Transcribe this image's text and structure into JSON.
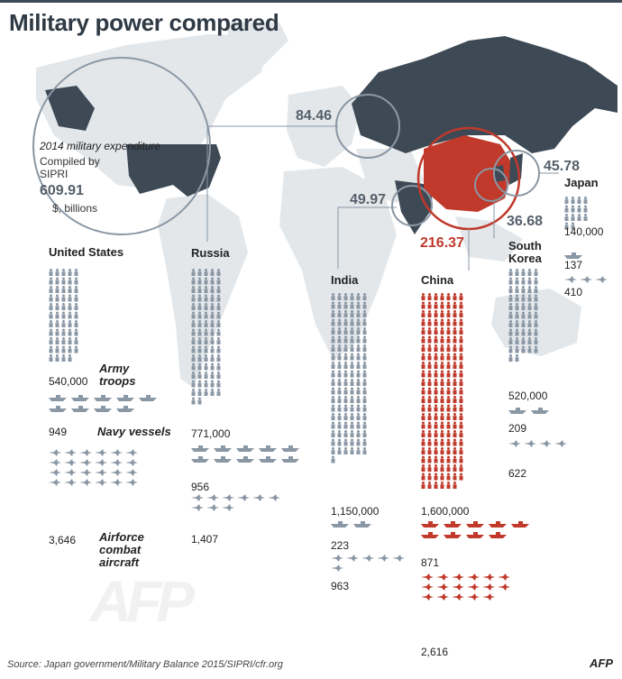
{
  "header": {
    "title": "Military power compared"
  },
  "legend": {
    "expenditure_line1": "2014 military expenditure",
    "expenditure_line2": "Compiled by",
    "expenditure_line3": "SIPRI",
    "unit": "$, billions",
    "troops": "Army troops",
    "vessels": "Navy vessels",
    "aircraft": "Airforce combat aircraft"
  },
  "footer": {
    "source": "Source: Japan government/Military Balance 2015/SIPRI/cfr.org",
    "logo": "AFP"
  },
  "colors": {
    "default": "#8a97a4",
    "highlight": "#c0392b",
    "map": "#e3e7ea",
    "dark_map": "#3d4a56",
    "spend_text": "#55606b"
  },
  "icons": {
    "troops": "soldier-icon",
    "vessels": "warship-icon",
    "aircraft": "fighter-jet-icon"
  },
  "chart_data": {
    "type": "table",
    "title": "Military power compared",
    "countries": [
      {
        "name": "United States",
        "expenditure": 609.91,
        "expenditure_label": "609.91",
        "troops": 540000,
        "troops_label": "540,000",
        "vessels": 949,
        "vessels_label": "949",
        "aircraft": 3646,
        "aircraft_label": "3,646"
      },
      {
        "name": "Russia",
        "expenditure": 84.46,
        "expenditure_label": "84.46",
        "troops": 771000,
        "troops_label": "771,000",
        "vessels": 956,
        "vessels_label": "956",
        "aircraft": 1407,
        "aircraft_label": "1,407"
      },
      {
        "name": "India",
        "expenditure": 49.97,
        "expenditure_label": "49.97",
        "troops": 1150000,
        "troops_label": "1,150,000",
        "vessels": 223,
        "vessels_label": "223",
        "aircraft": 963,
        "aircraft_label": "963"
      },
      {
        "name": "China",
        "expenditure": 216.37,
        "expenditure_label": "216.37",
        "troops": 1600000,
        "troops_label": "1,600,000",
        "vessels": 871,
        "vessels_label": "871",
        "aircraft": 2616,
        "aircraft_label": "2,616",
        "highlight": true
      },
      {
        "name": "South Korea",
        "expenditure": 36.68,
        "expenditure_label": "36.68",
        "troops": 520000,
        "troops_label": "520,000",
        "vessels": 209,
        "vessels_label": "209",
        "aircraft": 622,
        "aircraft_label": "622"
      },
      {
        "name": "Japan",
        "expenditure": 45.78,
        "expenditure_label": "45.78",
        "troops": 140000,
        "troops_label": "140,000",
        "vessels": 137,
        "vessels_label": "137",
        "aircraft": 410,
        "aircraft_label": "410"
      }
    ]
  }
}
